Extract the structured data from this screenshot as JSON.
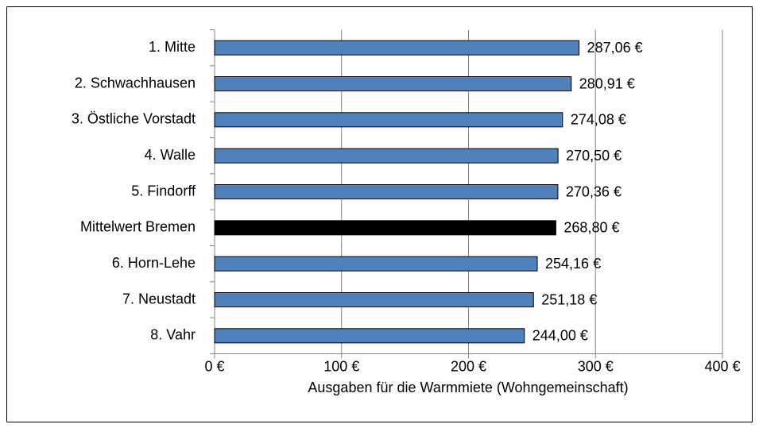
{
  "chart_data": {
    "type": "bar",
    "orientation": "horizontal",
    "xlabel": "Ausgaben für die Warmmiete (Wohngemeinschaft)",
    "categories": [
      "1. Mitte",
      "2. Schwachhausen",
      "3. Östliche Vorstadt",
      "4. Walle",
      "5. Findorff",
      "Mittelwert Bremen",
      "6. Horn-Lehe",
      "7. Neustadt",
      "8. Vahr"
    ],
    "values": [
      287.06,
      280.91,
      274.08,
      270.5,
      270.36,
      268.8,
      254.16,
      251.18,
      244.0
    ],
    "value_labels": [
      "287,06 €",
      "280,91 €",
      "274,08 €",
      "270,50 €",
      "270,36 €",
      "268,80 €",
      "254,16 €",
      "251,18 €",
      "244,00 €"
    ],
    "colors": [
      "#4f81bd",
      "#4f81bd",
      "#4f81bd",
      "#4f81bd",
      "#4f81bd",
      "#000000",
      "#4f81bd",
      "#4f81bd",
      "#4f81bd"
    ],
    "xlim": [
      0,
      400
    ],
    "xticks": [
      {
        "value": 0,
        "label": "0 €"
      },
      {
        "value": 100,
        "label": "100 €"
      },
      {
        "value": 200,
        "label": "200 €"
      },
      {
        "value": 300,
        "label": "300 €"
      },
      {
        "value": 400,
        "label": "400 €"
      }
    ],
    "grid": true
  }
}
